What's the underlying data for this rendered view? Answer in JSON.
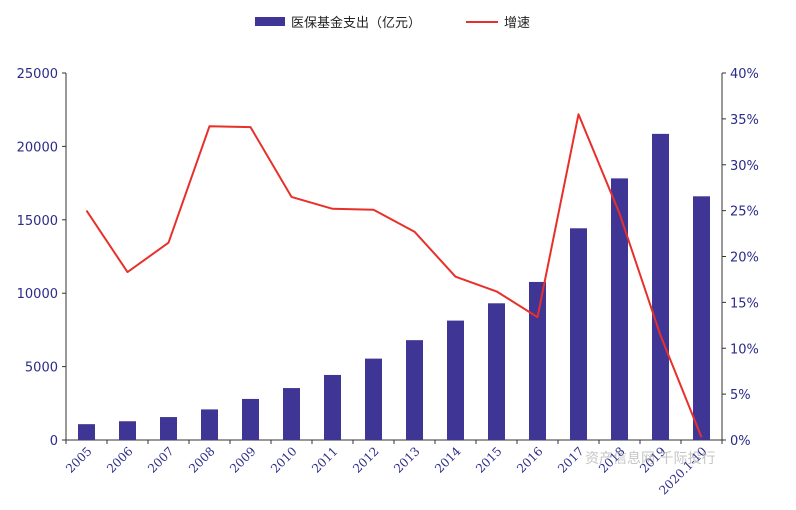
{
  "legend": {
    "bar_label": "医保基金支出（亿元）",
    "line_label": "增速"
  },
  "watermark": "资产信息网 千际投行",
  "colors": {
    "bar": "#3f3594",
    "line": "#e8302b",
    "axis": "#333333",
    "tick_text": "#2b2b8a"
  },
  "chart_data": {
    "type": "bar",
    "categories": [
      "2005",
      "2006",
      "2007",
      "2008",
      "2009",
      "2010",
      "2011",
      "2012",
      "2013",
      "2014",
      "2015",
      "2016",
      "2017",
      "2018",
      "2019",
      "2020.1-10"
    ],
    "series": [
      {
        "name": "医保基金支出（亿元）",
        "type": "bar",
        "axis": "left",
        "values": [
          1079,
          1277,
          1562,
          2084,
          2797,
          3538,
          4431,
          5544,
          6801,
          8134,
          9312,
          10767,
          14422,
          17822,
          20854,
          16600
        ]
      },
      {
        "name": "增速",
        "type": "line",
        "axis": "right",
        "values": [
          25.0,
          18.3,
          21.5,
          34.2,
          34.1,
          26.5,
          25.2,
          25.1,
          22.7,
          17.8,
          16.2,
          13.4,
          35.5,
          24.7,
          11.4,
          0.3
        ]
      }
    ],
    "ylim_left": [
      0,
      25000
    ],
    "yticks_left": [
      "0",
      "5000",
      "10000",
      "15000",
      "20000",
      "25000"
    ],
    "ylim_right": [
      0,
      40
    ],
    "yticks_right": [
      "0%",
      "5%",
      "10%",
      "15%",
      "20%",
      "25%",
      "30%",
      "35%",
      "40%"
    ],
    "grid": false,
    "legend_position": "top-center"
  }
}
